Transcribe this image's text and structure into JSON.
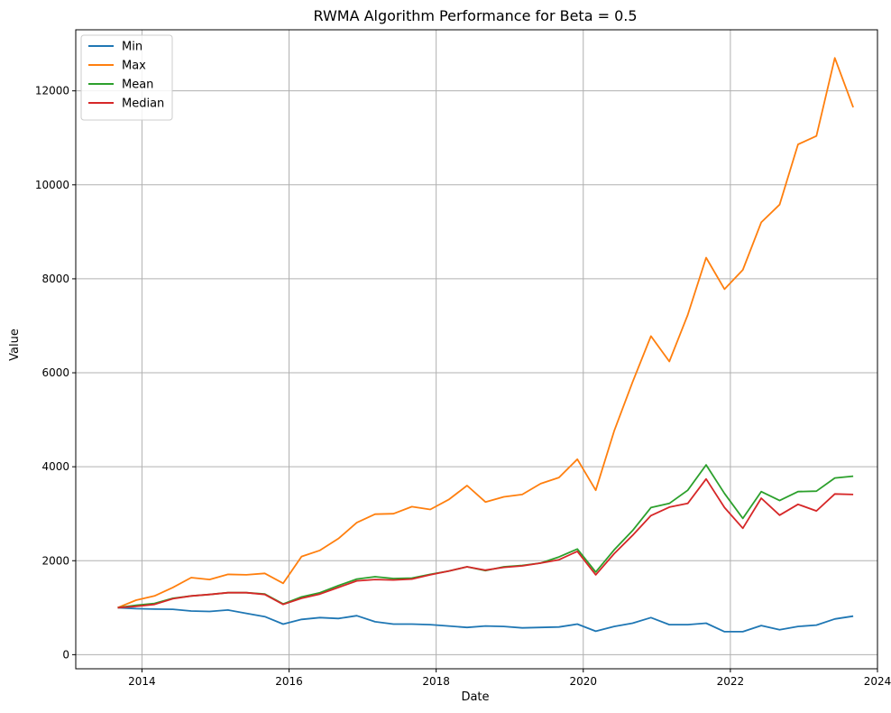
{
  "chart_data": {
    "type": "line",
    "title": "RWMA Algorithm Performance for Beta = 0.5",
    "xlabel": "Date",
    "ylabel": "Value",
    "xlim": [
      2013.1,
      2024.0
    ],
    "ylim": [
      -300,
      13300
    ],
    "x_ticks": [
      2014,
      2016,
      2018,
      2020,
      2022,
      2024
    ],
    "y_ticks": [
      0,
      2000,
      4000,
      6000,
      8000,
      10000,
      12000
    ],
    "grid": true,
    "legend_position": "upper-left",
    "x": [
      2013.67,
      2013.92,
      2014.17,
      2014.42,
      2014.67,
      2014.92,
      2015.17,
      2015.42,
      2015.67,
      2015.92,
      2016.17,
      2016.42,
      2016.67,
      2016.92,
      2017.17,
      2017.42,
      2017.67,
      2017.92,
      2018.17,
      2018.42,
      2018.67,
      2018.92,
      2019.17,
      2019.42,
      2019.67,
      2019.92,
      2020.17,
      2020.42,
      2020.67,
      2020.92,
      2021.17,
      2021.42,
      2021.67,
      2021.92,
      2022.17,
      2022.42,
      2022.67,
      2022.92,
      2023.17,
      2023.42,
      2023.67
    ],
    "series": [
      {
        "name": "Min",
        "color": "#1f77b4",
        "values": [
          1000,
          980,
          970,
          965,
          930,
          920,
          950,
          880,
          810,
          650,
          750,
          790,
          770,
          830,
          700,
          650,
          650,
          640,
          610,
          580,
          610,
          600,
          570,
          580,
          590,
          650,
          500,
          600,
          670,
          790,
          640,
          640,
          670,
          490,
          490,
          620,
          530,
          600,
          630,
          760,
          820
        ]
      },
      {
        "name": "Max",
        "color": "#ff7f0e",
        "values": [
          1000,
          1160,
          1250,
          1430,
          1640,
          1600,
          1710,
          1700,
          1730,
          1520,
          2090,
          2220,
          2470,
          2810,
          2990,
          3000,
          3150,
          3090,
          3300,
          3600,
          3250,
          3360,
          3410,
          3640,
          3770,
          4160,
          3500,
          4760,
          5800,
          6780,
          6240,
          7230,
          8450,
          7780,
          8190,
          9200,
          9580,
          10860,
          11040,
          12700,
          11650
        ]
      },
      {
        "name": "Mean",
        "color": "#2ca02c",
        "values": [
          1000,
          1050,
          1090,
          1200,
          1250,
          1280,
          1320,
          1320,
          1290,
          1080,
          1230,
          1320,
          1470,
          1610,
          1660,
          1620,
          1630,
          1710,
          1780,
          1870,
          1790,
          1870,
          1900,
          1950,
          2080,
          2250,
          1760,
          2230,
          2640,
          3130,
          3220,
          3500,
          4040,
          3430,
          2900,
          3470,
          3280,
          3470,
          3480,
          3760,
          3800
        ]
      },
      {
        "name": "Median",
        "color": "#d62728",
        "values": [
          1000,
          1030,
          1070,
          1190,
          1250,
          1280,
          1320,
          1320,
          1280,
          1070,
          1200,
          1290,
          1430,
          1570,
          1600,
          1590,
          1610,
          1700,
          1780,
          1870,
          1800,
          1860,
          1890,
          1950,
          2020,
          2200,
          1700,
          2150,
          2540,
          2960,
          3140,
          3220,
          3740,
          3130,
          2690,
          3330,
          2970,
          3200,
          3060,
          3420,
          3410
        ]
      }
    ]
  }
}
